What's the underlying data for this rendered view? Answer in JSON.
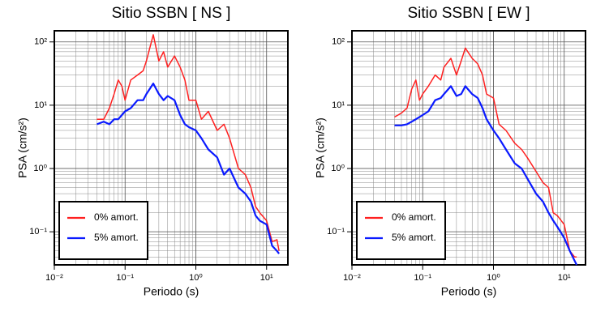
{
  "chart_data": [
    {
      "type": "line",
      "title": "Sitio SSBN [ NS ]",
      "x_label": "Periodo (s)",
      "y_label": "PSA (cm/s²)",
      "x_log": true,
      "y_log": true,
      "grid": true,
      "legend": "lower left",
      "xlim": [
        0.01,
        20
      ],
      "ylim": [
        0.03,
        150
      ],
      "xticks": [
        {
          "value": 0.01,
          "label": "10⁻²"
        },
        {
          "value": 0.1,
          "label": "10⁻¹"
        },
        {
          "value": 1,
          "label": "10⁰"
        },
        {
          "value": 10,
          "label": "10¹"
        }
      ],
      "yticks": [
        {
          "value": 0.1,
          "label": "10⁻¹"
        },
        {
          "value": 1,
          "label": "10⁰"
        },
        {
          "value": 10,
          "label": "10¹"
        },
        {
          "value": 100,
          "label": "10²"
        }
      ],
      "x": [
        0.04,
        0.05,
        0.06,
        0.07,
        0.08,
        0.09,
        0.1,
        0.12,
        0.15,
        0.18,
        0.2,
        0.25,
        0.3,
        0.35,
        0.4,
        0.5,
        0.6,
        0.7,
        0.8,
        1,
        1.2,
        1.5,
        2,
        2.5,
        3,
        4,
        5,
        6,
        7,
        8,
        10,
        12,
        14,
        15
      ],
      "series": [
        {
          "name": "0% amort.",
          "color": "#ff2020",
          "values": [
            6,
            6,
            9,
            15,
            25,
            20,
            12,
            25,
            30,
            35,
            50,
            130,
            50,
            70,
            40,
            60,
            40,
            25,
            12,
            12,
            6,
            8,
            4,
            5,
            3,
            1,
            0.8,
            0.5,
            0.25,
            0.2,
            0.15,
            0.07,
            0.075,
            0.05
          ]
        },
        {
          "name": "5% amort.",
          "color": "#0a1aff",
          "values": [
            5,
            5.5,
            5,
            6,
            6,
            7,
            8,
            9,
            12,
            12,
            15,
            22,
            15,
            12,
            14,
            12,
            7,
            5,
            4.5,
            4,
            3,
            2,
            1.5,
            0.8,
            1,
            0.5,
            0.4,
            0.3,
            0.18,
            0.15,
            0.13,
            0.06,
            0.05,
            0.045
          ]
        }
      ]
    },
    {
      "type": "line",
      "title": "Sitio SSBN [ EW ]",
      "x_label": "Periodo (s)",
      "y_label": "PSA (cm/s²)",
      "x_log": true,
      "y_log": true,
      "grid": true,
      "legend": "lower left",
      "xlim": [
        0.01,
        20
      ],
      "ylim": [
        0.03,
        150
      ],
      "xticks": [
        {
          "value": 0.01,
          "label": "10⁻²"
        },
        {
          "value": 0.1,
          "label": "10⁻¹"
        },
        {
          "value": 1,
          "label": "10⁰"
        },
        {
          "value": 10,
          "label": "10¹"
        }
      ],
      "yticks": [
        {
          "value": 0.1,
          "label": "10⁻¹"
        },
        {
          "value": 1,
          "label": "10⁰"
        },
        {
          "value": 10,
          "label": "10¹"
        },
        {
          "value": 100,
          "label": "10²"
        }
      ],
      "x": [
        0.04,
        0.05,
        0.06,
        0.07,
        0.08,
        0.09,
        0.1,
        0.12,
        0.15,
        0.18,
        0.2,
        0.25,
        0.3,
        0.35,
        0.4,
        0.5,
        0.6,
        0.7,
        0.8,
        1,
        1.2,
        1.5,
        2,
        2.5,
        3,
        4,
        5,
        6,
        7,
        8,
        10,
        12,
        14,
        15
      ],
      "series": [
        {
          "name": "0% amort.",
          "color": "#ff2020",
          "values": [
            6.5,
            7.5,
            9,
            18,
            25,
            12,
            15,
            20,
            30,
            25,
            40,
            55,
            30,
            50,
            80,
            55,
            45,
            30,
            15,
            13,
            5,
            4,
            2.5,
            2,
            1.5,
            0.9,
            0.6,
            0.5,
            0.2,
            0.18,
            0.13,
            0.05,
            0.04,
            0.04
          ]
        },
        {
          "name": "5% amort.",
          "color": "#0a1aff",
          "values": [
            4.8,
            4.8,
            5,
            5.5,
            6,
            6.5,
            7,
            8,
            12,
            13,
            15,
            20,
            14,
            15,
            20,
            15,
            13,
            9,
            6,
            4,
            3,
            2,
            1.2,
            1,
            0.7,
            0.4,
            0.3,
            0.2,
            0.15,
            0.12,
            0.08,
            0.05,
            0.035,
            0.03
          ]
        }
      ]
    }
  ]
}
